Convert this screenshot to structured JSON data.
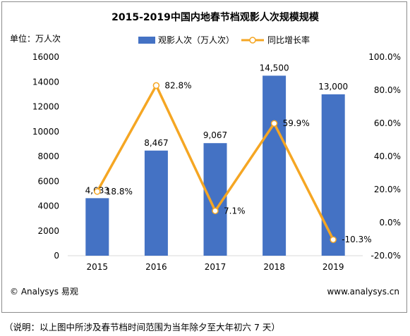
{
  "chart_data": {
    "type": "bar",
    "title": "2015-2019中国内地春节档观影人次规模规模",
    "unit_label": "单位：万人次",
    "categories": [
      "2015",
      "2016",
      "2017",
      "2018",
      "2019"
    ],
    "series": [
      {
        "name": "观影人次（万人次）",
        "type": "bar",
        "axis": "left",
        "values": [
          4633,
          8467,
          9067,
          14500,
          13000
        ],
        "labels": [
          "4,633",
          "8,467",
          "9,067",
          "14,500",
          "13,000"
        ],
        "color": "#4472c4"
      },
      {
        "name": "同比增长率",
        "type": "line",
        "axis": "right",
        "values": [
          18.8,
          82.8,
          7.1,
          59.9,
          -10.3
        ],
        "labels": [
          "18.8%",
          "82.8%",
          "7.1%",
          "59.9%",
          "-10.3%"
        ],
        "color": "#f5a623"
      }
    ],
    "y_left": {
      "min": 0,
      "max": 16000,
      "ticks": [
        "0",
        "2000",
        "4000",
        "6000",
        "8000",
        "10000",
        "12000",
        "14000",
        "16000"
      ]
    },
    "y_right": {
      "min": -20,
      "max": 100,
      "ticks": [
        "-20.0%",
        "0.0%",
        "20.0%",
        "40.0%",
        "60.0%",
        "80.0%",
        "100.0%"
      ]
    },
    "grid": false,
    "legend": "top"
  },
  "footer": {
    "source": "© Analysys 易观",
    "url": "www.analysys.cn"
  },
  "caption": "（说明：以上图中所涉及春节档时间范围为当年除夕至大年初六 7 天）"
}
